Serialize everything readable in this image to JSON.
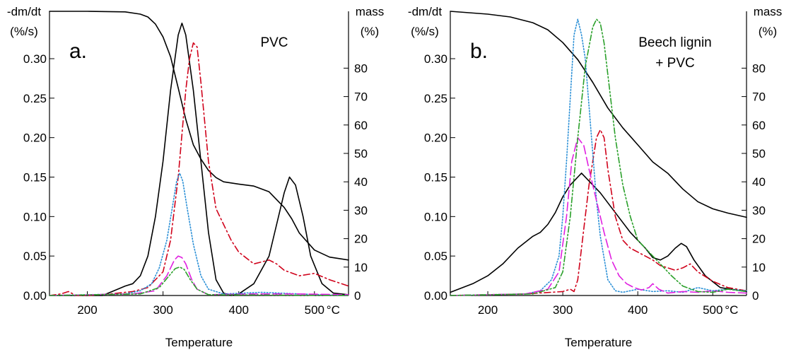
{
  "chart_data": [
    {
      "type": "line",
      "panel_label": "a.",
      "title": "PVC",
      "xlabel": "Temperature",
      "x_unit": "°C",
      "ylabel_left": [
        "-dm/dt",
        "(%/s)"
      ],
      "ylabel_right": [
        "mass",
        "(%)"
      ],
      "xlim": [
        150,
        545
      ],
      "ylim_left": [
        0,
        0.36
      ],
      "ylim_right": [
        0,
        100
      ],
      "x_ticks": [
        200,
        300,
        400,
        500
      ],
      "x_tick_labels": [
        "200",
        "300",
        "400",
        "500"
      ],
      "y_left_ticks": [
        0,
        0.05,
        0.1,
        0.15,
        0.2,
        0.25,
        0.3
      ],
      "y_left_tick_labels": [
        "0.00",
        "0.05",
        "0.10",
        "0.15",
        "0.20",
        "0.25",
        "0.30"
      ],
      "y_right_ticks": [
        0,
        10,
        20,
        30,
        40,
        50,
        60,
        70,
        80
      ],
      "y_right_tick_labels": [
        "0",
        "10",
        "20",
        "30",
        "40",
        "50",
        "60",
        "70",
        "80"
      ],
      "series": [
        {
          "axis": "right",
          "color": "#000000",
          "dash": "solid",
          "x": [
            150,
            200,
            250,
            270,
            280,
            290,
            300,
            310,
            320,
            330,
            340,
            350,
            360,
            370,
            380,
            400,
            420,
            440,
            460,
            470,
            480,
            500,
            520,
            545
          ],
          "y": [
            100,
            100,
            99.8,
            99,
            98,
            95.5,
            91,
            84,
            73,
            62,
            53,
            48,
            44,
            41.5,
            40,
            39.2,
            38.5,
            36.5,
            31,
            27,
            22,
            16,
            13.5,
            12.5
          ]
        },
        {
          "axis": "left",
          "color": "#000000",
          "dash": "solid",
          "x": [
            150,
            200,
            220,
            240,
            250,
            260,
            270,
            280,
            290,
            300,
            310,
            320,
            325,
            330,
            340,
            350,
            360,
            370,
            380,
            390,
            400,
            420,
            440,
            450,
            460,
            467,
            475,
            485,
            495,
            510,
            525,
            545
          ],
          "y": [
            0,
            0,
            0,
            0.008,
            0.012,
            0.015,
            0.025,
            0.05,
            0.1,
            0.17,
            0.26,
            0.33,
            0.345,
            0.33,
            0.26,
            0.17,
            0.08,
            0.02,
            0.003,
            0,
            0.002,
            0.015,
            0.05,
            0.09,
            0.13,
            0.15,
            0.14,
            0.1,
            0.05,
            0.015,
            0.003,
            0.001
          ]
        },
        {
          "axis": "left",
          "color": "#d0021b",
          "dash": "dashdot",
          "x": [
            150,
            165,
            175,
            185,
            200,
            230,
            260,
            280,
            300,
            310,
            320,
            330,
            335,
            340,
            345,
            350,
            360,
            370,
            380,
            390,
            400,
            420,
            440,
            450,
            460,
            480,
            500,
            520,
            545
          ],
          "y": [
            0,
            0.002,
            0.005,
            0,
            0,
            0.002,
            0.005,
            0.01,
            0.03,
            0.07,
            0.15,
            0.26,
            0.3,
            0.32,
            0.315,
            0.27,
            0.17,
            0.11,
            0.09,
            0.07,
            0.055,
            0.04,
            0.045,
            0.04,
            0.032,
            0.025,
            0.028,
            0.02,
            0.012
          ]
        },
        {
          "axis": "left",
          "color": "#2a8fd6",
          "dash": "dotted",
          "x": [
            150,
            250,
            270,
            285,
            295,
            305,
            312,
            318,
            322,
            326,
            332,
            340,
            350,
            360,
            380,
            430,
            480,
            545
          ],
          "y": [
            0,
            0.002,
            0.006,
            0.015,
            0.035,
            0.07,
            0.11,
            0.145,
            0.155,
            0.145,
            0.11,
            0.065,
            0.025,
            0.008,
            0.002,
            0.004,
            0.002,
            0
          ]
        },
        {
          "axis": "left",
          "color": "#e020e0",
          "dash": "longdash",
          "x": [
            150,
            260,
            290,
            305,
            315,
            320,
            325,
            330,
            338,
            345,
            360,
            420,
            480,
            545
          ],
          "y": [
            0,
            0.002,
            0.006,
            0.025,
            0.045,
            0.05,
            0.048,
            0.04,
            0.02,
            0.008,
            0.001,
            0.002,
            0.002,
            0.001
          ]
        },
        {
          "axis": "left",
          "color": "#2aa02a",
          "dash": "dashdotdot",
          "x": [
            150,
            270,
            295,
            308,
            316,
            322,
            328,
            336,
            345,
            360,
            545
          ],
          "y": [
            0,
            0.002,
            0.01,
            0.025,
            0.034,
            0.036,
            0.033,
            0.02,
            0.008,
            0.001,
            0
          ]
        }
      ]
    },
    {
      "type": "line",
      "panel_label": "b.",
      "title": "Beech lignin\n+ PVC",
      "xlabel": "Temperature",
      "x_unit": "°C",
      "ylabel_left": [
        "-dm/dt",
        "(%/s)"
      ],
      "ylabel_right": [
        "mass",
        "(%)"
      ],
      "xlim": [
        150,
        545
      ],
      "ylim_left": [
        0,
        0.36
      ],
      "ylim_right": [
        0,
        100
      ],
      "x_ticks": [
        200,
        300,
        400,
        500
      ],
      "x_tick_labels": [
        "200",
        "300",
        "400",
        "500"
      ],
      "y_left_ticks": [
        0,
        0.05,
        0.1,
        0.15,
        0.2,
        0.25,
        0.3
      ],
      "y_left_tick_labels": [
        "0.00",
        "0.05",
        "0.10",
        "0.15",
        "0.20",
        "0.25",
        "0.30"
      ],
      "y_right_ticks": [
        0,
        10,
        20,
        30,
        40,
        50,
        60,
        70,
        80
      ],
      "y_right_tick_labels": [
        "0",
        "10",
        "20",
        "30",
        "40",
        "50",
        "60",
        "70",
        "80"
      ],
      "series": [
        {
          "axis": "right",
          "color": "#000000",
          "dash": "solid",
          "x": [
            150,
            200,
            230,
            260,
            280,
            300,
            320,
            340,
            360,
            380,
            400,
            420,
            440,
            460,
            480,
            500,
            520,
            545
          ],
          "y": [
            100,
            99,
            98,
            96,
            93.5,
            89,
            83,
            75,
            66,
            59,
            53,
            47,
            43,
            37.5,
            33,
            30.5,
            29,
            27.5
          ]
        },
        {
          "axis": "left",
          "color": "#000000",
          "dash": "solid",
          "x": [
            150,
            180,
            200,
            220,
            240,
            260,
            270,
            280,
            290,
            300,
            310,
            320,
            325,
            335,
            350,
            370,
            390,
            410,
            420,
            430,
            440,
            450,
            458,
            465,
            475,
            490,
            510,
            545
          ],
          "y": [
            0.004,
            0.015,
            0.025,
            0.04,
            0.06,
            0.075,
            0.08,
            0.09,
            0.105,
            0.125,
            0.14,
            0.15,
            0.155,
            0.145,
            0.13,
            0.105,
            0.08,
            0.06,
            0.048,
            0.045,
            0.05,
            0.06,
            0.066,
            0.062,
            0.045,
            0.025,
            0.01,
            0.005
          ]
        },
        {
          "axis": "left",
          "color": "#d0021b",
          "dash": "dashdot",
          "x": [
            150,
            200,
            250,
            300,
            310,
            315,
            320,
            325,
            330,
            335,
            340,
            345,
            350,
            355,
            360,
            370,
            380,
            390,
            400,
            410,
            420,
            430,
            440,
            450,
            460,
            470,
            480,
            500,
            520,
            545
          ],
          "y": [
            0,
            0.001,
            0.002,
            0.005,
            0.008,
            0.005,
            0.02,
            0.06,
            0.1,
            0.14,
            0.17,
            0.2,
            0.21,
            0.2,
            0.16,
            0.1,
            0.07,
            0.06,
            0.055,
            0.05,
            0.045,
            0.038,
            0.035,
            0.032,
            0.035,
            0.04,
            0.03,
            0.018,
            0.01,
            0.006
          ]
        },
        {
          "axis": "left",
          "color": "#2a8fd6",
          "dash": "dotted",
          "x": [
            150,
            250,
            270,
            285,
            295,
            300,
            305,
            310,
            315,
            320,
            325,
            330,
            335,
            340,
            345,
            350,
            360,
            370,
            380,
            400,
            420,
            440,
            460,
            480,
            500,
            520,
            545
          ],
          "y": [
            0,
            0.002,
            0.006,
            0.02,
            0.05,
            0.1,
            0.17,
            0.25,
            0.33,
            0.35,
            0.33,
            0.3,
            0.24,
            0.18,
            0.12,
            0.075,
            0.02,
            0.006,
            0.004,
            0.008,
            0.005,
            0.006,
            0.004,
            0.01,
            0.006,
            0.008,
            0.006
          ]
        },
        {
          "axis": "left",
          "color": "#e020e0",
          "dash": "longdash",
          "x": [
            150,
            250,
            280,
            295,
            305,
            312,
            320,
            328,
            335,
            345,
            355,
            365,
            375,
            385,
            395,
            405,
            415,
            420,
            428,
            440,
            460,
            480,
            500,
            520,
            545
          ],
          "y": [
            0,
            0.002,
            0.008,
            0.03,
            0.1,
            0.17,
            0.2,
            0.19,
            0.16,
            0.12,
            0.08,
            0.045,
            0.025,
            0.015,
            0.01,
            0.007,
            0.01,
            0.015,
            0.008,
            0.003,
            0.005,
            0.004,
            0.006,
            0.004,
            0.003
          ]
        },
        {
          "axis": "left",
          "color": "#2aa02a",
          "dash": "dashdotdot",
          "x": [
            150,
            260,
            290,
            300,
            310,
            320,
            330,
            340,
            345,
            350,
            355,
            360,
            365,
            370,
            380,
            390,
            400,
            410,
            420,
            430,
            445,
            460,
            480,
            500,
            520,
            545
          ],
          "y": [
            0,
            0.002,
            0.01,
            0.03,
            0.1,
            0.2,
            0.29,
            0.34,
            0.35,
            0.345,
            0.32,
            0.28,
            0.24,
            0.2,
            0.14,
            0.1,
            0.07,
            0.06,
            0.05,
            0.04,
            0.025,
            0.012,
            0.005,
            0.004,
            0.008,
            0.005
          ]
        }
      ]
    }
  ]
}
